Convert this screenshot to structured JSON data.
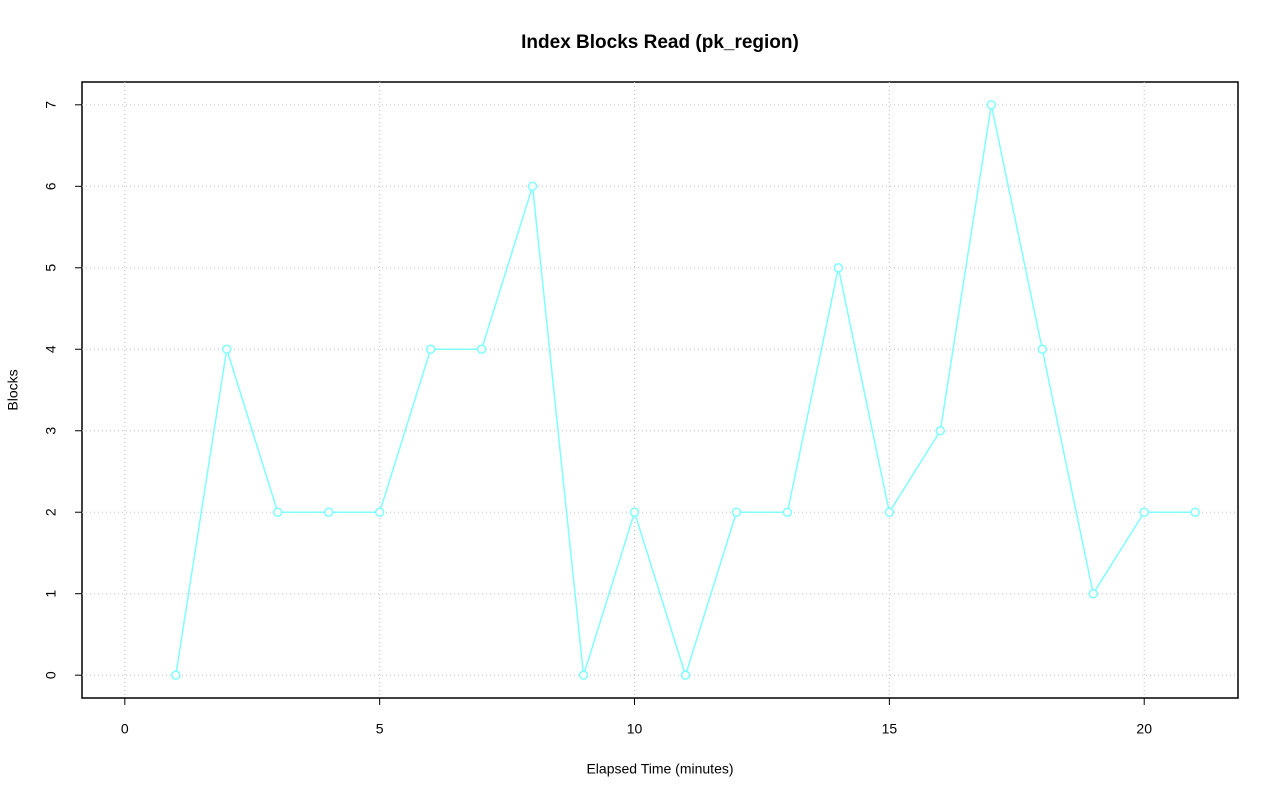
{
  "chart_data": {
    "type": "line",
    "title": "Index Blocks Read (pk_region)",
    "x_label": "Elapsed Time (minutes)",
    "y_label": "Blocks",
    "x": [
      1,
      2,
      3,
      4,
      5,
      6,
      7,
      8,
      9,
      10,
      11,
      12,
      13,
      14,
      15,
      16,
      17,
      18,
      19,
      20,
      21
    ],
    "values": [
      0,
      4,
      2,
      2,
      2,
      4,
      4,
      6,
      0,
      2,
      0,
      2,
      2,
      5,
      2,
      3,
      7,
      4,
      1,
      2,
      2
    ],
    "color": "#80ffff",
    "markers": true,
    "grid": true,
    "xlim": [
      -0.84,
      21.84
    ],
    "xticks": [
      0,
      5,
      10,
      15,
      20
    ],
    "ylim": [
      -0.28,
      7.28
    ],
    "yticks": [
      0,
      1,
      2,
      3,
      4,
      5,
      6,
      7
    ]
  }
}
